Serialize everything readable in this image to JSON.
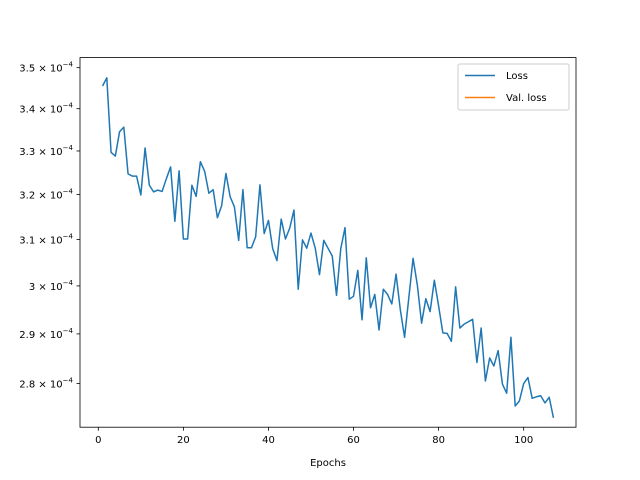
{
  "chart_data": {
    "type": "line",
    "title": "",
    "xlabel": "Epochs",
    "ylabel": "",
    "yscale": "log",
    "xlim": [
      -4.3,
      112.3
    ],
    "ylim": [
      0.0002715,
      0.0003525
    ],
    "x_ticks": [
      0,
      20,
      40,
      60,
      80,
      100
    ],
    "x_tick_labels": [
      "0",
      "20",
      "40",
      "60",
      "80",
      "100"
    ],
    "y_ticks": [
      0.00028,
      0.00029,
      0.0003,
      0.00031,
      0.00032,
      0.00033,
      0.00034,
      0.00035
    ],
    "y_tick_labels": [
      {
        "mantissa": "2.8",
        "exp": "−4"
      },
      {
        "mantissa": "2.9",
        "exp": "−4"
      },
      {
        "mantissa": "3",
        "exp": "−4"
      },
      {
        "mantissa": "3.1",
        "exp": "−4"
      },
      {
        "mantissa": "3.2",
        "exp": "−4"
      },
      {
        "mantissa": "3.3",
        "exp": "−4"
      },
      {
        "mantissa": "3.4",
        "exp": "−4"
      },
      {
        "mantissa": "3.5",
        "exp": "−4"
      }
    ],
    "y_tick_base": "× 10",
    "grid": false,
    "legend_position": "top-right",
    "series": [
      {
        "name": "Loss",
        "color": "#1f77b4",
        "x": [
          1,
          2,
          3,
          4,
          5,
          6,
          7,
          8,
          9,
          10,
          11,
          12,
          13,
          14,
          15,
          16,
          17,
          18,
          19,
          20,
          21,
          22,
          23,
          24,
          25,
          26,
          27,
          28,
          29,
          30,
          31,
          32,
          33,
          34,
          35,
          36,
          37,
          38,
          39,
          40,
          41,
          42,
          43,
          44,
          45,
          46,
          47,
          48,
          49,
          50,
          51,
          52,
          53,
          54,
          55,
          56,
          57,
          58,
          59,
          60,
          61,
          62,
          63,
          64,
          65,
          66,
          67,
          68,
          69,
          70,
          71,
          72,
          73,
          74,
          75,
          76,
          77,
          78,
          79,
          80,
          81,
          82,
          83,
          84,
          85,
          86,
          87,
          88,
          89,
          90,
          91,
          92,
          93,
          94,
          95,
          96,
          97,
          98,
          99,
          100,
          101,
          102,
          103,
          104,
          105,
          106,
          107
        ],
        "y": [
          0.0003455,
          0.0003475,
          0.0003297,
          0.0003288,
          0.0003345,
          0.0003356,
          0.0003247,
          0.0003242,
          0.0003242,
          0.0003199,
          0.0003307,
          0.0003221,
          0.0003206,
          0.000321,
          0.0003207,
          0.0003236,
          0.0003263,
          0.000314,
          0.0003254,
          0.0003101,
          0.0003101,
          0.0003221,
          0.0003196,
          0.0003275,
          0.0003253,
          0.0003203,
          0.0003211,
          0.0003148,
          0.0003175,
          0.0003248,
          0.0003195,
          0.0003172,
          0.0003098,
          0.0003211,
          0.0003082,
          0.0003082,
          0.0003106,
          0.0003222,
          0.0003113,
          0.0003142,
          0.000308,
          0.0003054,
          0.0003145,
          0.0003101,
          0.0003125,
          0.0003165,
          0.0002993,
          0.0003099,
          0.0003081,
          0.0003114,
          0.0003081,
          0.0003024,
          0.0003098,
          0.0003081,
          0.0003064,
          0.000298,
          0.000308,
          0.0003126,
          0.0002972,
          0.0002978,
          0.0003033,
          0.0002929,
          0.000306,
          0.0002954,
          0.0002982,
          0.0002908,
          0.0002993,
          0.0002982,
          0.0002962,
          0.0003025,
          0.000295,
          0.0002893,
          0.0002975,
          0.0003059,
          0.0003002,
          0.0002922,
          0.0002973,
          0.0002946,
          0.0003012,
          0.0002958,
          0.0002902,
          0.0002901,
          0.0002885,
          0.0002998,
          0.0002912,
          0.000292,
          0.0002925,
          0.000293,
          0.0002842,
          0.0002912,
          0.0002805,
          0.0002851,
          0.0002835,
          0.0002866,
          0.0002799,
          0.0002781,
          0.0002893,
          0.0002756,
          0.0002766,
          0.00028,
          0.0002812,
          0.0002771,
          0.0002774,
          0.0002776,
          0.0002762,
          0.0002773,
          0.0002733
        ]
      },
      {
        "name": "Val. loss",
        "color": "#ff7f0e",
        "x": [],
        "y": []
      }
    ]
  }
}
